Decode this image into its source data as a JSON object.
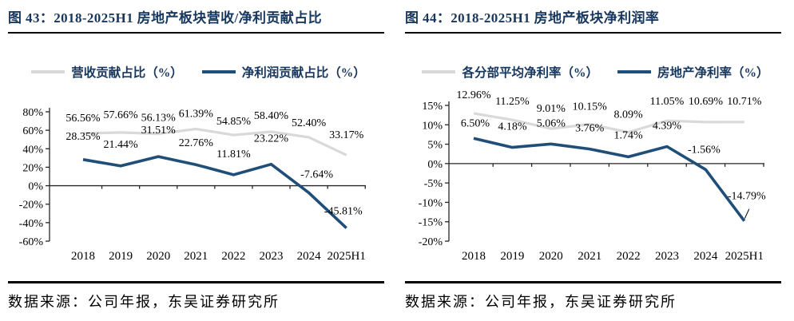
{
  "colors": {
    "title_navy": "#17375E",
    "line_blue": "#1F4E79",
    "line_gray": "#D9D9D9",
    "axis_black": "#262626",
    "rule_black": "#000000"
  },
  "panels": [
    {
      "title": "图 43：2018-2025H1 房地产板块营收/净利贡献占比",
      "source_note": "数据来源：公司年报，东吴证券研究所"
    },
    {
      "title": "图 44：2018-2025H1 房地产板块净利润率",
      "source_note": "数据来源：公司年报，东吴证券研究所"
    }
  ],
  "chart_data": [
    {
      "type": "line",
      "title": "2018-2025H1 房地产板块营收/净利贡献占比",
      "categories": [
        "2018",
        "2019",
        "2020",
        "2021",
        "2022",
        "2023",
        "2024",
        "2025H1"
      ],
      "series": [
        {
          "name": "营收贡献占比（%）",
          "color_key": "line_gray",
          "values": [
            56.56,
            57.66,
            56.13,
            61.39,
            54.85,
            58.4,
            52.4,
            33.17
          ],
          "point_labels": [
            "56.56%",
            "57.66%",
            "56.13%",
            "61.39%",
            "54.85%",
            "58.40%",
            "52.40%",
            "33.17%"
          ]
        },
        {
          "name": "净利润贡献占比（%）",
          "color_key": "line_blue",
          "values": [
            28.35,
            21.44,
            31.51,
            22.76,
            11.81,
            23.22,
            -7.64,
            -45.81
          ],
          "point_labels": [
            "28.35%",
            "21.44%",
            "31.51%",
            "22.76%",
            "11.81%",
            "23.22%",
            "-7.64%",
            "-45.81%"
          ]
        }
      ],
      "ylim": [
        -60,
        80
      ],
      "ytick_step": 20,
      "ytick_labels": [
        "80%",
        "60%",
        "40%",
        "20%",
        "0%",
        "-20%",
        "-40%",
        "-60%"
      ],
      "legend_position": "top",
      "grid": false
    },
    {
      "type": "line",
      "title": "2018-2025H1 房地产板块净利润率",
      "categories": [
        "2018",
        "2019",
        "2020",
        "2021",
        "2022",
        "2023",
        "2024",
        "2025H1"
      ],
      "series": [
        {
          "name": "各分部平均净利率（%）",
          "color_key": "line_gray",
          "values": [
            12.96,
            11.25,
            9.01,
            10.15,
            8.09,
            11.05,
            10.69,
            10.71
          ],
          "point_labels": [
            "12.96%",
            "11.25%",
            "9.01%",
            "10.15%",
            "8.09%",
            "11.05%",
            "10.69%",
            "10.71%"
          ]
        },
        {
          "name": "房地产净利率（%）",
          "color_key": "line_blue",
          "values": [
            6.5,
            4.18,
            5.06,
            3.76,
            1.74,
            4.39,
            -1.56,
            -14.79
          ],
          "point_labels": [
            "6.50%",
            "4.18%",
            "5.06%",
            "3.76%",
            "1.74%",
            "4.39%",
            "-1.56%",
            "-14.79%"
          ]
        }
      ],
      "ylim": [
        -20,
        15
      ],
      "ytick_step": 5,
      "ytick_labels": [
        "15%",
        "10%",
        "5%",
        "0%",
        "-5%",
        "-10%",
        "-15%",
        "-20%"
      ],
      "legend_position": "top",
      "grid": false
    }
  ]
}
